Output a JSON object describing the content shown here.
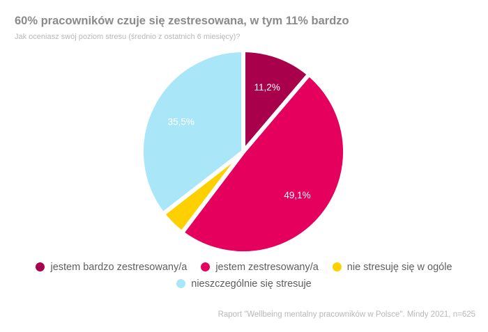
{
  "title": "60% pracowników czuje się zestresowana, w tym 11% bardzo",
  "subtitle": "Jak oceniasz swój poziom stresu (średnio z ostatnich 6 miesięcy)?",
  "source": "Raport \"Wellbeing mentalny pracowników w Polsce\". Mindy 2021, n=625",
  "chart_data": {
    "type": "pie",
    "categories": [
      "jestem bardzo zestresowany/a",
      "jestem zestresowany/a",
      "nie stresuję się w ogóle",
      "nieszczególnie się stresuje"
    ],
    "values": [
      11.2,
      49.1,
      4.2,
      35.5
    ],
    "data_labels": [
      "11,2%",
      "49,1%",
      "",
      "35,5%"
    ],
    "colors": [
      "#a8004a",
      "#e5005e",
      "#ffd000",
      "#a9e6f7"
    ],
    "legend_position": "bottom"
  }
}
